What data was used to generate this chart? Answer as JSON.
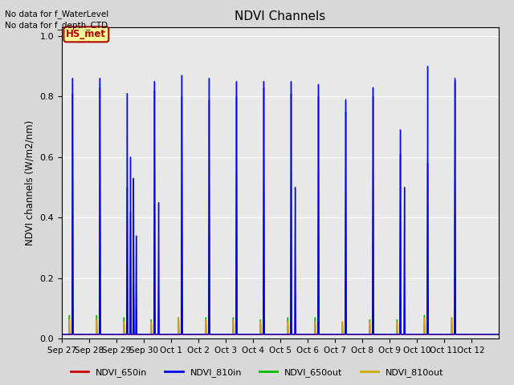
{
  "title": "NDVI Channels",
  "ylabel": "NDVI channels (W/m2/nm)",
  "ylim": [
    0.0,
    1.03
  ],
  "background_color": "#d8d8d8",
  "plot_bg_color": "#e8e8e8",
  "legend_labels": [
    "NDVI_650in",
    "NDVI_810in",
    "NDVI_650out",
    "NDVI_810out"
  ],
  "legend_colors": [
    "#cc0000",
    "#0000ee",
    "#00bb00",
    "#ccaa00"
  ],
  "text_lines": [
    "No data for f_WaterLevel",
    "No data for f_depth_CTD"
  ],
  "hs_label": "HS_met",
  "hs_label_color": "#aa0000",
  "hs_bg_color": "#ffff99",
  "hs_border_color": "#aa0000",
  "tick_labels": [
    "Sep 27",
    "Sep 28",
    "Sep 29",
    "Sep 30",
    "Oct 1",
    "Oct 2",
    "Oct 3",
    "Oct 4",
    "Oct 5",
    "Oct 6",
    "Oct 7",
    "Oct 8",
    "Oct 9",
    "Oct 10",
    "Oct 11",
    "Oct 12"
  ],
  "num_days": 16,
  "peak_810in": [
    0.86,
    0.86,
    0.81,
    0.85,
    0.87,
    0.86,
    0.85,
    0.85,
    0.85,
    0.84,
    0.79,
    0.83,
    0.69,
    0.9,
    0.86,
    0.0
  ],
  "peak_650in": [
    0.81,
    0.83,
    0.5,
    0.82,
    0.8,
    0.79,
    0.8,
    0.83,
    0.81,
    0.8,
    0.75,
    0.8,
    0.61,
    0.58,
    0.85,
    0.0
  ],
  "peak_650out": [
    0.11,
    0.11,
    0.1,
    0.09,
    0.1,
    0.1,
    0.1,
    0.09,
    0.1,
    0.1,
    0.08,
    0.09,
    0.09,
    0.11,
    0.1,
    0.0
  ],
  "peak_810out": [
    0.09,
    0.09,
    0.08,
    0.08,
    0.1,
    0.09,
    0.09,
    0.08,
    0.08,
    0.08,
    0.08,
    0.08,
    0.08,
    0.1,
    0.1,
    0.0
  ],
  "grid_color": "#ffffff",
  "line_width": 1.0
}
